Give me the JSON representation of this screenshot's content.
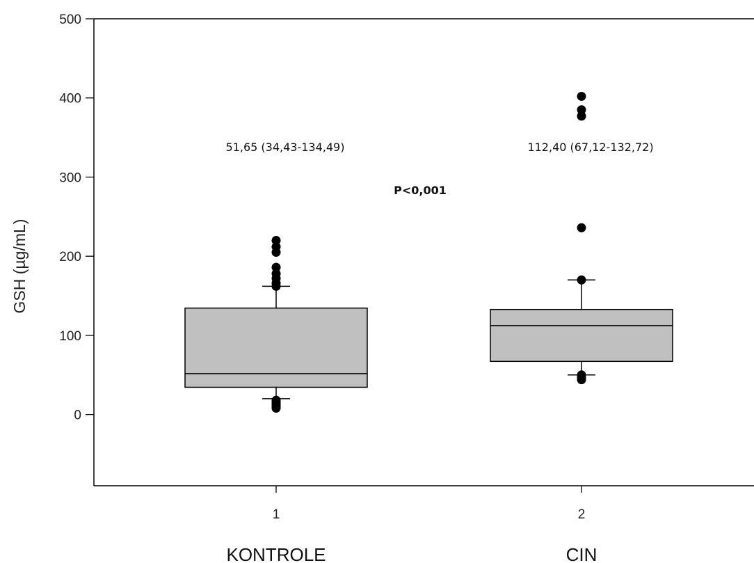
{
  "chart_data": {
    "type": "box",
    "ylabel": "GSH (µg/mL)",
    "ylim": [
      -90,
      500
    ],
    "yticks": [
      0,
      100,
      200,
      300,
      400,
      500
    ],
    "x_ticks": [
      "1",
      "2"
    ],
    "categories": [
      "KONTROLE",
      "CIN"
    ],
    "boxes": [
      {
        "category": "KONTROLE",
        "x_tick": "1",
        "q1": 34.43,
        "median": 51.65,
        "q3": 134.49,
        "whisker_low": 20,
        "whisker_high": 162,
        "outliers": [
          8,
          10,
          12,
          14,
          16,
          18,
          162,
          166,
          172,
          178,
          186,
          205,
          212,
          220
        ],
        "annotation": "51,65 (34,43-134,49)"
      },
      {
        "category": "CIN",
        "x_tick": "2",
        "q1": 67.12,
        "median": 112.4,
        "q3": 132.72,
        "whisker_low": 50,
        "whisker_high": 170,
        "outliers": [
          44,
          47,
          50,
          170,
          236,
          377,
          385,
          402
        ],
        "annotation": "112,40 (67,12-132,72)"
      }
    ],
    "p_value_label": "P<0,001",
    "colors": {
      "box_fill": "#c0c0c0",
      "stroke": "#000000",
      "outlier": "#000000"
    }
  }
}
